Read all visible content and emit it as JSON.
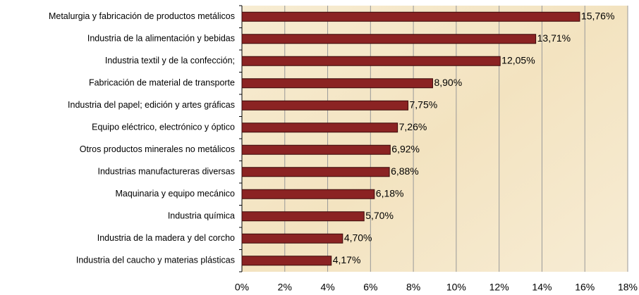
{
  "chart_data": {
    "type": "barh",
    "categories": [
      "Metalurgia y fabricación de productos metálicos",
      "Industria de la alimentación y bebidas",
      "Industria textil y de la confección;",
      "Fabricación de material de transporte",
      "Industria del papel; edición y artes gráficas",
      "Equipo eléctrico, electrónico y óptico",
      "Otros productos minerales no metálicos",
      "Industrias manufactureras diversas",
      "Maquinaria y equipo mecánico",
      "Industria química",
      "Industria de la madera y del corcho",
      "Industria del caucho y materias plásticas"
    ],
    "values": [
      15.76,
      13.71,
      12.05,
      8.9,
      7.75,
      7.26,
      6.92,
      6.88,
      6.18,
      5.7,
      4.7,
      4.17
    ],
    "value_labels": [
      "15,76%",
      "13,71%",
      "12,05%",
      "8,90%",
      "7,75%",
      "7,26%",
      "6,92%",
      "6,88%",
      "6,18%",
      "5,70%",
      "4,70%",
      "4,17%"
    ],
    "color": "#8b2323",
    "xlim": [
      0,
      18
    ],
    "xticks": [
      {
        "value": 0,
        "label": "0%"
      },
      {
        "value": 2,
        "label": "2%"
      },
      {
        "value": 4,
        "label": "4%"
      },
      {
        "value": 6,
        "label": "6%"
      },
      {
        "value": 8,
        "label": "8%"
      },
      {
        "value": 10,
        "label": "10%"
      },
      {
        "value": 12,
        "label": "12%"
      },
      {
        "value": 14,
        "label": "14%"
      },
      {
        "value": 16,
        "label": "16%"
      },
      {
        "value": 18,
        "label": "18%"
      }
    ],
    "grid": true
  }
}
